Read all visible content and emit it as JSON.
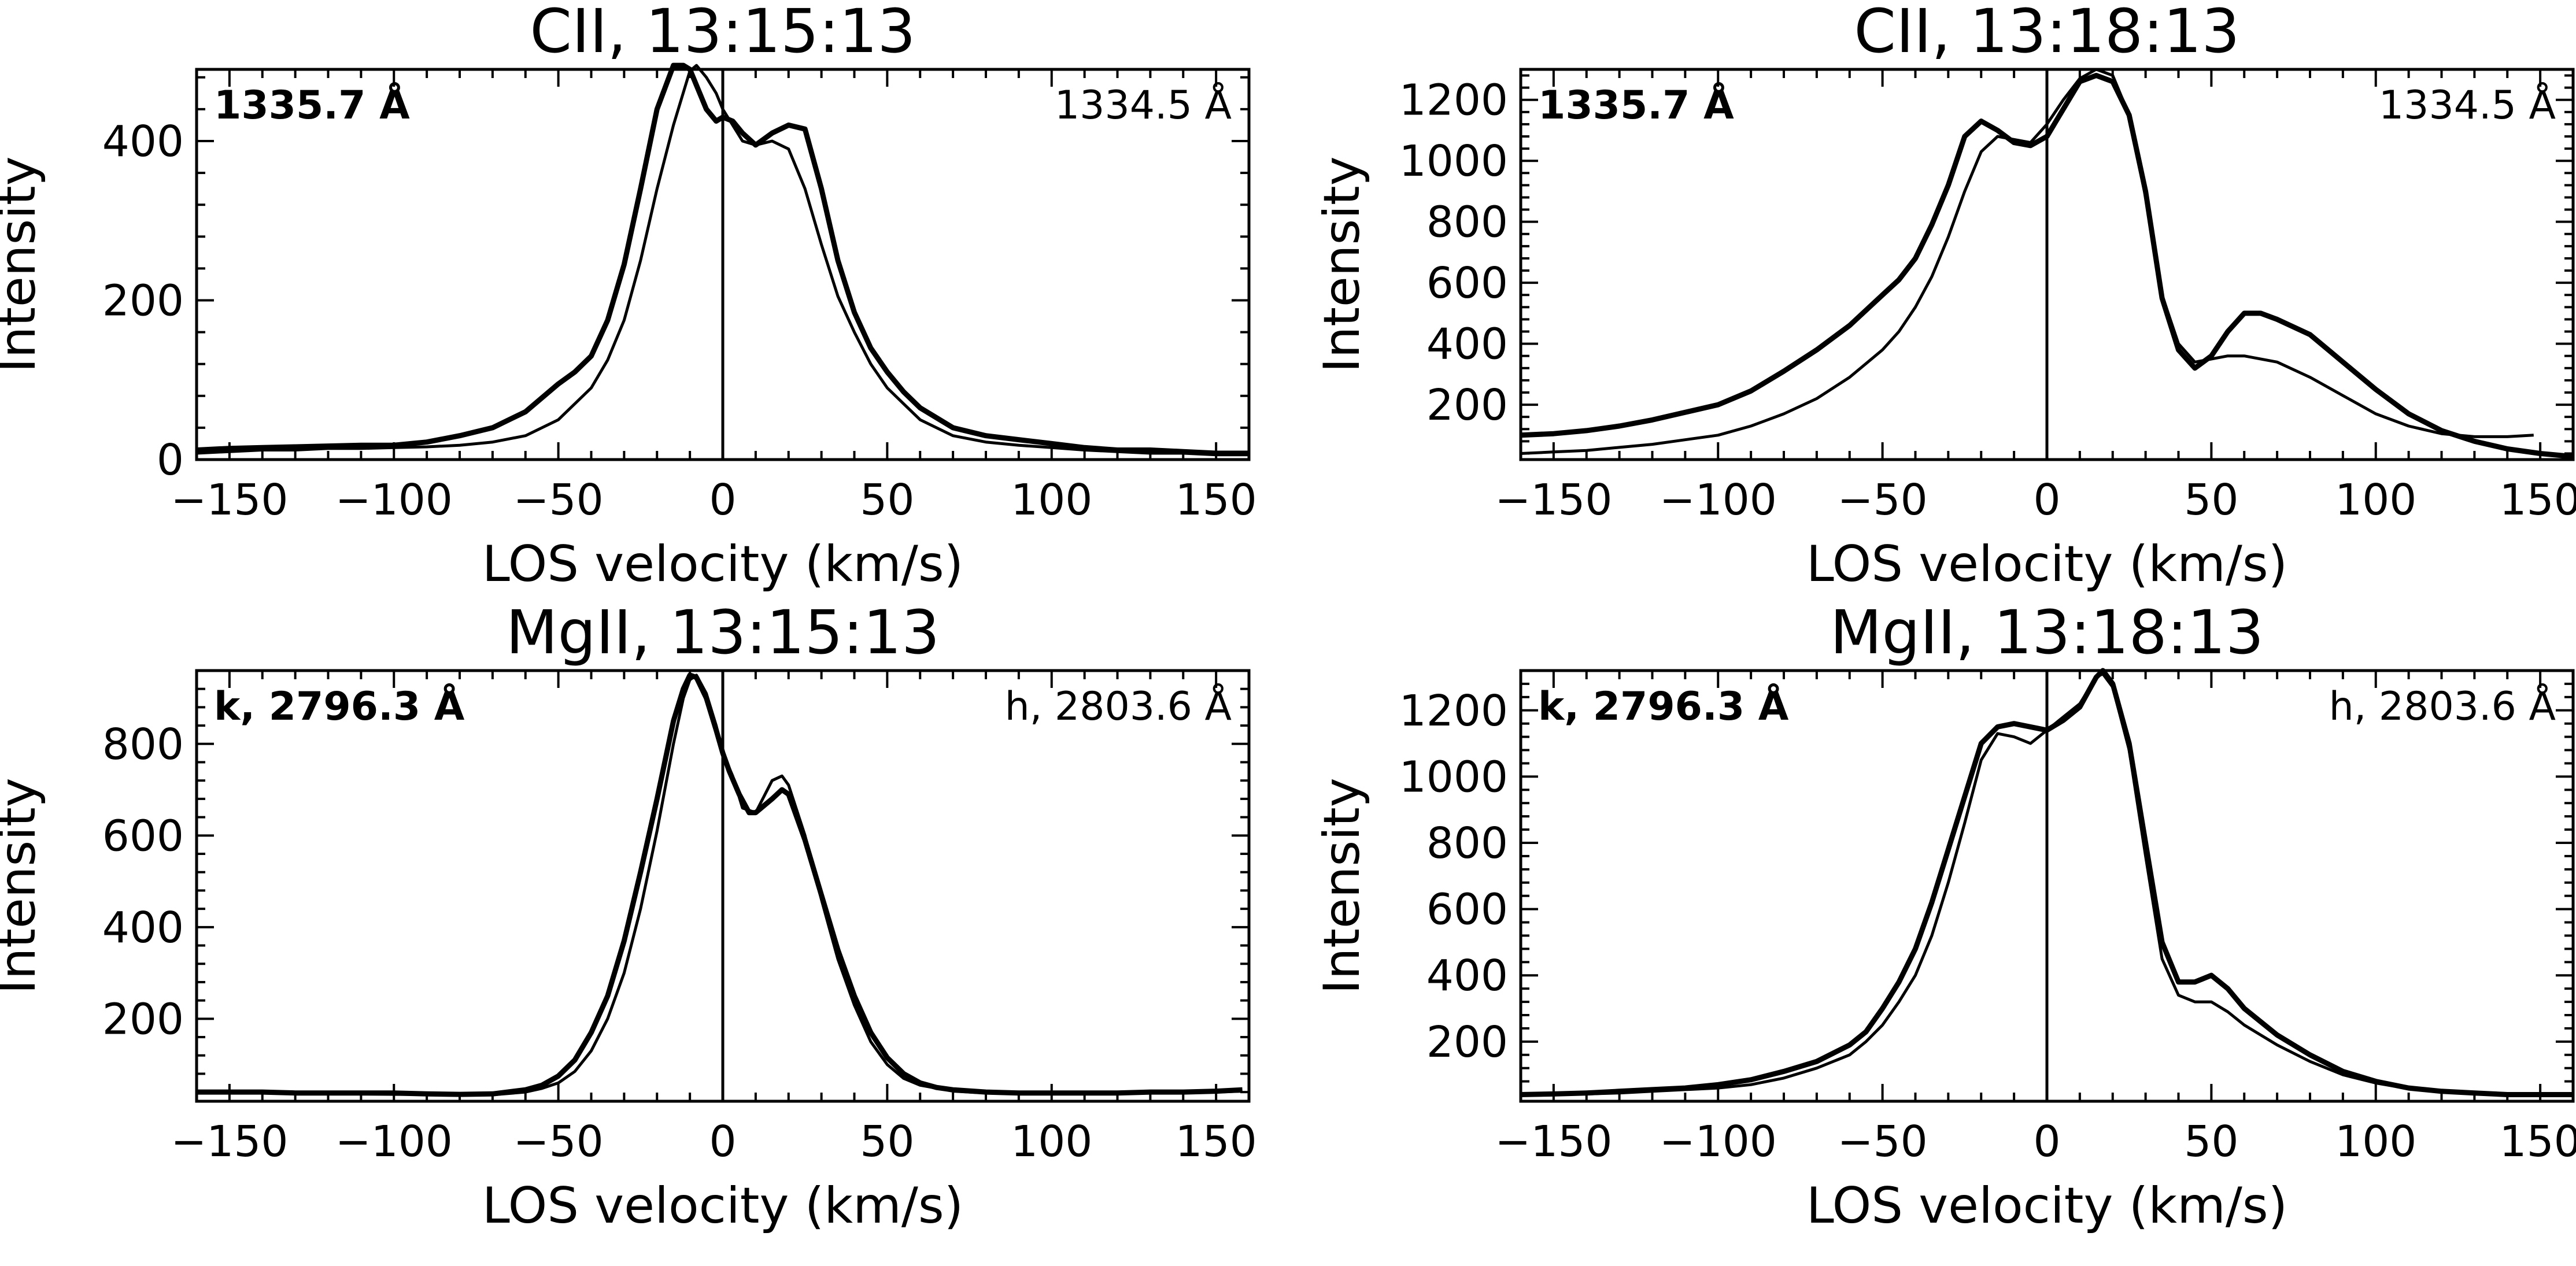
{
  "chart_data": [
    {
      "type": "line",
      "title": "CII, 13:15:13",
      "xlabel": "LOS velocity (km/s)",
      "ylabel": "Intensity",
      "xlim": [
        -160,
        160
      ],
      "ylim": [
        0,
        490
      ],
      "xticks": [
        -150,
        -100,
        -50,
        0,
        50,
        100,
        150
      ],
      "yticks": [
        0,
        200,
        400
      ],
      "annotation_left": "1335.7 Å",
      "annotation_right": "1334.5 Å",
      "series": [
        {
          "name": "1335.7 Å",
          "style": "thick",
          "x": [
            -160,
            -150,
            -140,
            -130,
            -120,
            -110,
            -100,
            -90,
            -80,
            -70,
            -60,
            -50,
            -45,
            -40,
            -35,
            -30,
            -25,
            -20,
            -15,
            -12,
            -10,
            -8,
            -5,
            -2,
            0,
            3,
            6,
            10,
            15,
            20,
            25,
            30,
            35,
            40,
            45,
            50,
            55,
            60,
            70,
            80,
            90,
            100,
            110,
            120,
            130,
            140,
            150,
            160
          ],
          "y": [
            12,
            14,
            15,
            16,
            17,
            18,
            18,
            22,
            30,
            40,
            60,
            95,
            110,
            130,
            175,
            245,
            340,
            440,
            495,
            495,
            490,
            470,
            440,
            425,
            430,
            425,
            410,
            395,
            410,
            420,
            415,
            340,
            250,
            185,
            140,
            110,
            85,
            65,
            40,
            30,
            25,
            20,
            15,
            12,
            12,
            10,
            8,
            8
          ]
        },
        {
          "name": "1334.5 Å",
          "style": "thin",
          "x": [
            -160,
            -150,
            -140,
            -130,
            -120,
            -110,
            -100,
            -90,
            -80,
            -70,
            -60,
            -50,
            -40,
            -35,
            -30,
            -25,
            -20,
            -15,
            -10,
            -8,
            -5,
            -2,
            0,
            3,
            6,
            10,
            15,
            20,
            25,
            30,
            35,
            40,
            45,
            50,
            55,
            60,
            70,
            80,
            90,
            100,
            110,
            120,
            130,
            140,
            150,
            160
          ],
          "y": [
            8,
            10,
            12,
            12,
            14,
            14,
            15,
            16,
            18,
            22,
            30,
            50,
            90,
            125,
            175,
            250,
            340,
            420,
            488,
            495,
            480,
            460,
            440,
            420,
            400,
            395,
            400,
            390,
            340,
            270,
            205,
            160,
            120,
            90,
            70,
            50,
            30,
            22,
            18,
            15,
            12,
            10,
            8,
            8,
            6,
            6
          ]
        }
      ]
    },
    {
      "type": "line",
      "title": "CII, 13:18:13",
      "xlabel": "LOS velocity (km/s)",
      "ylabel": "Intensity",
      "xlim": [
        -160,
        160
      ],
      "ylim": [
        20,
        1300
      ],
      "xticks": [
        -150,
        -100,
        -50,
        0,
        50,
        100,
        150
      ],
      "yticks": [
        200,
        400,
        600,
        800,
        1000,
        1200
      ],
      "annotation_left": "1335.7 Å",
      "annotation_right": "1334.5 Å",
      "series": [
        {
          "name": "1335.7 Å",
          "style": "thick",
          "x": [
            -160,
            -150,
            -140,
            -130,
            -120,
            -110,
            -100,
            -90,
            -80,
            -70,
            -60,
            -50,
            -45,
            -40,
            -35,
            -30,
            -25,
            -20,
            -15,
            -10,
            -5,
            0,
            5,
            10,
            15,
            20,
            25,
            30,
            35,
            40,
            45,
            50,
            55,
            60,
            65,
            70,
            80,
            90,
            100,
            110,
            120,
            130,
            140,
            150,
            160
          ],
          "y": [
            100,
            105,
            115,
            130,
            150,
            175,
            200,
            245,
            310,
            380,
            460,
            560,
            610,
            680,
            790,
            920,
            1080,
            1130,
            1100,
            1060,
            1050,
            1080,
            1170,
            1260,
            1280,
            1260,
            1150,
            900,
            550,
            380,
            320,
            360,
            440,
            500,
            500,
            480,
            430,
            340,
            250,
            170,
            115,
            80,
            55,
            40,
            30
          ]
        },
        {
          "name": "1334.5 Å",
          "style": "thin",
          "x": [
            -160,
            -150,
            -140,
            -130,
            -120,
            -110,
            -100,
            -90,
            -80,
            -70,
            -60,
            -50,
            -45,
            -40,
            -35,
            -30,
            -25,
            -20,
            -15,
            -10,
            -5,
            0,
            5,
            10,
            15,
            20,
            25,
            30,
            35,
            40,
            45,
            50,
            55,
            60,
            70,
            80,
            90,
            100,
            110,
            120,
            130,
            140,
            148
          ],
          "y": [
            40,
            45,
            50,
            60,
            70,
            85,
            100,
            130,
            170,
            220,
            290,
            380,
            440,
            520,
            620,
            750,
            900,
            1030,
            1080,
            1070,
            1060,
            1120,
            1200,
            1270,
            1300,
            1280,
            1150,
            880,
            560,
            400,
            340,
            350,
            360,
            360,
            340,
            290,
            230,
            170,
            130,
            105,
            95,
            95,
            100
          ]
        }
      ]
    },
    {
      "type": "line",
      "title": "MgII, 13:15:13",
      "xlabel": "LOS velocity (km/s)",
      "ylabel": "Intensity",
      "xlim": [
        -160,
        160
      ],
      "ylim": [
        20,
        960
      ],
      "xticks": [
        -150,
        -100,
        -50,
        0,
        50,
        100,
        150
      ],
      "yticks": [
        200,
        400,
        600,
        800
      ],
      "annotation_left": "k, 2796.3 Å",
      "annotation_right": "h, 2803.6 Å",
      "series": [
        {
          "name": "k, 2796.3 Å",
          "style": "thick",
          "x": [
            -160,
            -150,
            -140,
            -130,
            -120,
            -110,
            -100,
            -90,
            -80,
            -70,
            -60,
            -55,
            -50,
            -45,
            -40,
            -35,
            -30,
            -25,
            -20,
            -15,
            -12,
            -10,
            -8,
            -5,
            -2,
            0,
            2,
            5,
            8,
            10,
            15,
            18,
            20,
            25,
            30,
            35,
            40,
            45,
            50,
            55,
            60,
            65,
            70,
            80,
            90,
            100,
            110,
            120,
            130,
            140,
            150,
            158
          ],
          "y": [
            40,
            40,
            40,
            38,
            38,
            38,
            38,
            36,
            35,
            36,
            45,
            55,
            75,
            110,
            170,
            250,
            370,
            520,
            680,
            850,
            920,
            950,
            945,
            900,
            830,
            780,
            740,
            690,
            650,
            650,
            680,
            700,
            690,
            590,
            470,
            350,
            250,
            170,
            115,
            80,
            60,
            50,
            45,
            40,
            38,
            38,
            38,
            38,
            40,
            40,
            42,
            45
          ]
        },
        {
          "name": "h, 2803.6 Å",
          "style": "thin",
          "x": [
            -160,
            -150,
            -140,
            -130,
            -120,
            -110,
            -100,
            -90,
            -80,
            -70,
            -60,
            -55,
            -50,
            -45,
            -40,
            -35,
            -30,
            -25,
            -20,
            -15,
            -12,
            -10,
            -8,
            -5,
            -2,
            0,
            3,
            6,
            10,
            15,
            18,
            20,
            25,
            30,
            35,
            40,
            45,
            50,
            55,
            60,
            70,
            80,
            90,
            100,
            110,
            120,
            130,
            140,
            150,
            158
          ],
          "y": [
            38,
            38,
            38,
            36,
            36,
            36,
            35,
            35,
            34,
            34,
            40,
            48,
            60,
            85,
            130,
            200,
            300,
            440,
            610,
            800,
            900,
            940,
            950,
            910,
            840,
            780,
            730,
            660,
            650,
            720,
            730,
            710,
            600,
            460,
            330,
            230,
            150,
            100,
            70,
            55,
            42,
            38,
            36,
            36,
            36,
            36,
            38,
            38,
            40,
            42
          ]
        }
      ]
    },
    {
      "type": "line",
      "title": "MgII, 13:18:13",
      "xlabel": "LOS velocity (km/s)",
      "ylabel": "Intensity",
      "xlim": [
        -160,
        160
      ],
      "ylim": [
        20,
        1320
      ],
      "xticks": [
        -150,
        -100,
        -50,
        0,
        50,
        100,
        150
      ],
      "yticks": [
        200,
        400,
        600,
        800,
        1000,
        1200
      ],
      "annotation_left": "k, 2796.3 Å",
      "annotation_right": "h, 2803.6 Å",
      "series": [
        {
          "name": "k, 2796.3 Å",
          "style": "thick",
          "x": [
            -160,
            -150,
            -140,
            -130,
            -120,
            -110,
            -100,
            -90,
            -80,
            -70,
            -60,
            -55,
            -50,
            -45,
            -40,
            -35,
            -30,
            -25,
            -20,
            -15,
            -10,
            -5,
            0,
            5,
            10,
            15,
            17,
            20,
            25,
            30,
            35,
            40,
            45,
            50,
            55,
            60,
            70,
            80,
            90,
            100,
            110,
            120,
            130,
            140,
            150,
            160
          ],
          "y": [
            40,
            42,
            45,
            50,
            55,
            60,
            70,
            85,
            110,
            140,
            190,
            230,
            300,
            380,
            480,
            620,
            780,
            940,
            1100,
            1150,
            1160,
            1150,
            1140,
            1170,
            1210,
            1300,
            1320,
            1280,
            1100,
            800,
            500,
            380,
            380,
            400,
            360,
            300,
            220,
            160,
            110,
            80,
            60,
            50,
            45,
            40,
            40,
            40
          ]
        },
        {
          "name": "h, 2803.6 Å",
          "style": "thin",
          "x": [
            -160,
            -150,
            -140,
            -130,
            -120,
            -110,
            -100,
            -90,
            -80,
            -70,
            -60,
            -55,
            -50,
            -45,
            -40,
            -35,
            -30,
            -25,
            -20,
            -15,
            -10,
            -5,
            0,
            5,
            10,
            15,
            17,
            20,
            25,
            30,
            35,
            40,
            45,
            50,
            55,
            60,
            70,
            80,
            90,
            100,
            110,
            120,
            130,
            140,
            150,
            160
          ],
          "y": [
            38,
            40,
            42,
            45,
            50,
            55,
            60,
            70,
            90,
            120,
            160,
            200,
            250,
            320,
            400,
            520,
            680,
            860,
            1050,
            1130,
            1120,
            1100,
            1140,
            1180,
            1220,
            1300,
            1310,
            1270,
            1080,
            760,
            450,
            340,
            320,
            320,
            290,
            250,
            190,
            140,
            100,
            75,
            58,
            48,
            42,
            40,
            40,
            40
          ]
        }
      ]
    }
  ]
}
